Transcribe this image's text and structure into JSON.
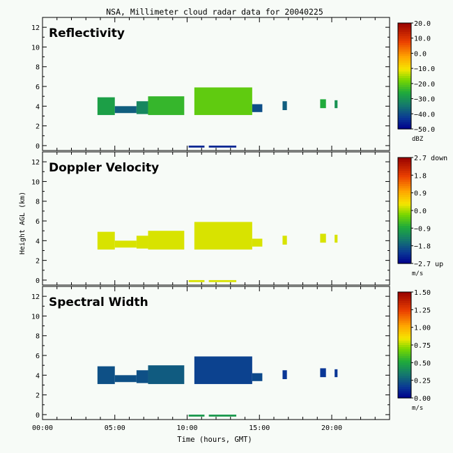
{
  "title": "NSA, Millimeter cloud radar data for 20040225",
  "xlabel": "Time (hours, GMT)",
  "ylabel": "Height AGL (km)",
  "colors": {
    "background": "#f7fbf7",
    "frame": "#000000"
  },
  "chart_data": [
    {
      "type": "heatmap",
      "title": "Reflectivity",
      "xlabel": "Time (hours, GMT)",
      "ylabel": "Height AGL (km)",
      "xlim": [
        0,
        24
      ],
      "ylim": [
        -0.5,
        13
      ],
      "xticks": [
        0,
        5,
        10,
        15,
        20
      ],
      "xtick_labels": [
        "00:00",
        "05:00",
        "10:00",
        "15:00",
        "20:00"
      ],
      "yticks": [
        0,
        2,
        4,
        6,
        8,
        10,
        12
      ],
      "ytick_labels": [
        "0",
        "2",
        "4",
        "6",
        "8",
        "10",
        "12"
      ],
      "colorbar": {
        "min": -50,
        "max": 20,
        "unit": "dBZ",
        "ticks": [
          "20.0",
          "10.0",
          "0.0",
          "−10.0",
          "−20.0",
          "−30.0",
          "−40.0",
          "−50.0"
        ]
      },
      "regions": [
        {
          "t0": 3.8,
          "t1": 5.0,
          "h0": 3.1,
          "h1": 4.9,
          "value": -28
        },
        {
          "t0": 5.0,
          "t1": 6.5,
          "h0": 3.3,
          "h1": 4.0,
          "value": -38
        },
        {
          "t0": 6.5,
          "t1": 7.3,
          "h0": 3.2,
          "h1": 4.5,
          "value": -32
        },
        {
          "t0": 7.3,
          "t1": 9.8,
          "h0": 3.1,
          "h1": 5.0,
          "value": -24
        },
        {
          "t0": 10.5,
          "t1": 14.5,
          "h0": 3.1,
          "h1": 5.9,
          "value": -20
        },
        {
          "t0": 14.5,
          "t1": 15.2,
          "h0": 3.4,
          "h1": 4.2,
          "value": -40
        },
        {
          "t0": 16.6,
          "t1": 16.9,
          "h0": 3.6,
          "h1": 4.5,
          "value": -38
        },
        {
          "t0": 19.2,
          "t1": 19.6,
          "h0": 3.8,
          "h1": 4.7,
          "value": -26
        },
        {
          "t0": 20.2,
          "t1": 20.4,
          "h0": 3.8,
          "h1": 4.6,
          "value": -30
        },
        {
          "t0": 10.1,
          "t1": 11.2,
          "h0": -0.2,
          "h1": 0.0,
          "value": -45
        },
        {
          "t0": 11.5,
          "t1": 13.4,
          "h0": -0.2,
          "h1": 0.0,
          "value": -45
        }
      ]
    },
    {
      "type": "heatmap",
      "title": "Doppler Velocity",
      "xlabel": "Time (hours, GMT)",
      "ylabel": "Height AGL (km)",
      "xlim": [
        0,
        24
      ],
      "ylim": [
        -0.5,
        13
      ],
      "xticks": [
        0,
        5,
        10,
        15,
        20
      ],
      "xtick_labels": [
        "00:00",
        "05:00",
        "10:00",
        "15:00",
        "20:00"
      ],
      "yticks": [
        0,
        2,
        4,
        6,
        8,
        10,
        12
      ],
      "ytick_labels": [
        "0",
        "2",
        "4",
        "6",
        "8",
        "10",
        "12"
      ],
      "colorbar": {
        "min": -2.7,
        "max": 2.7,
        "unit": "m/s",
        "ticks": [
          "2.7 down",
          "1.8",
          "0.9",
          "0.0",
          "−0.9",
          "−1.8",
          "−2.7 up"
        ]
      },
      "regions": [
        {
          "t0": 3.8,
          "t1": 5.0,
          "h0": 3.1,
          "h1": 4.9,
          "value": 0.2
        },
        {
          "t0": 5.0,
          "t1": 6.5,
          "h0": 3.3,
          "h1": 4.0,
          "value": 0.2
        },
        {
          "t0": 6.5,
          "t1": 7.3,
          "h0": 3.2,
          "h1": 4.5,
          "value": 0.2
        },
        {
          "t0": 7.3,
          "t1": 9.8,
          "h0": 3.1,
          "h1": 5.0,
          "value": 0.2
        },
        {
          "t0": 10.5,
          "t1": 14.5,
          "h0": 3.1,
          "h1": 5.9,
          "value": 0.2
        },
        {
          "t0": 14.5,
          "t1": 15.2,
          "h0": 3.4,
          "h1": 4.2,
          "value": 0.2
        },
        {
          "t0": 16.6,
          "t1": 16.9,
          "h0": 3.6,
          "h1": 4.5,
          "value": 0.2
        },
        {
          "t0": 19.2,
          "t1": 19.6,
          "h0": 3.8,
          "h1": 4.7,
          "value": 0.2
        },
        {
          "t0": 20.2,
          "t1": 20.4,
          "h0": 3.8,
          "h1": 4.6,
          "value": 0.2
        },
        {
          "t0": 10.1,
          "t1": 11.2,
          "h0": -0.2,
          "h1": 0.0,
          "value": 0.2
        },
        {
          "t0": 11.5,
          "t1": 13.4,
          "h0": -0.2,
          "h1": 0.0,
          "value": 0.2
        }
      ]
    },
    {
      "type": "heatmap",
      "title": "Spectral Width",
      "xlabel": "Time (hours, GMT)",
      "ylabel": "Height AGL (km)",
      "xlim": [
        0,
        24
      ],
      "ylim": [
        -0.5,
        13
      ],
      "xticks": [
        0,
        5,
        10,
        15,
        20
      ],
      "xtick_labels": [
        "00:00",
        "05:00",
        "10:00",
        "15:00",
        "20:00"
      ],
      "yticks": [
        0,
        2,
        4,
        6,
        8,
        10,
        12
      ],
      "ytick_labels": [
        "0",
        "2",
        "4",
        "6",
        "8",
        "10",
        "12"
      ],
      "colorbar": {
        "min": 0,
        "max": 1.5,
        "unit": "m/s",
        "ticks": [
          "1.50",
          "1.25",
          "1.00",
          "0.75",
          "0.50",
          "0.25",
          "0.00"
        ]
      },
      "regions": [
        {
          "t0": 3.8,
          "t1": 5.0,
          "h0": 3.1,
          "h1": 4.9,
          "value": 0.22
        },
        {
          "t0": 5.0,
          "t1": 6.5,
          "h0": 3.3,
          "h1": 4.0,
          "value": 0.22
        },
        {
          "t0": 6.5,
          "t1": 7.3,
          "h0": 3.2,
          "h1": 4.5,
          "value": 0.22
        },
        {
          "t0": 7.3,
          "t1": 9.8,
          "h0": 3.1,
          "h1": 5.0,
          "value": 0.25
        },
        {
          "t0": 10.5,
          "t1": 14.5,
          "h0": 3.1,
          "h1": 5.9,
          "value": 0.18
        },
        {
          "t0": 14.5,
          "t1": 15.2,
          "h0": 3.4,
          "h1": 4.2,
          "value": 0.2
        },
        {
          "t0": 16.6,
          "t1": 16.9,
          "h0": 3.6,
          "h1": 4.5,
          "value": 0.15
        },
        {
          "t0": 19.2,
          "t1": 19.6,
          "h0": 3.8,
          "h1": 4.7,
          "value": 0.15
        },
        {
          "t0": 20.2,
          "t1": 20.4,
          "h0": 3.8,
          "h1": 4.6,
          "value": 0.15
        },
        {
          "t0": 10.1,
          "t1": 11.2,
          "h0": -0.2,
          "h1": 0.0,
          "value": 0.45
        },
        {
          "t0": 11.5,
          "t1": 13.4,
          "h0": -0.2,
          "h1": 0.0,
          "value": 0.45
        }
      ]
    }
  ]
}
